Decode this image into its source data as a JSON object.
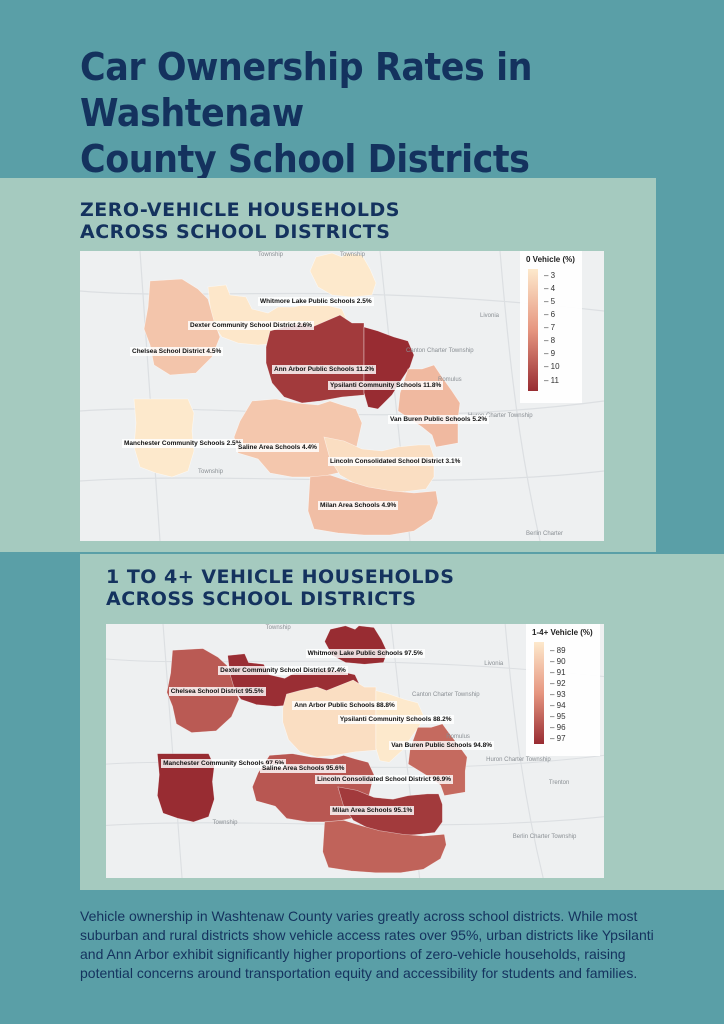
{
  "page": {
    "title_line1": "Car Ownership Rates in Washtenaw",
    "title_line2": "County School Districts",
    "description": "Vehicle ownership in Washtenaw County varies greatly across school districts. While most suburban and rural districts show vehicle access rates over 95%, urban districts like Ypsilanti and Ann Arbor exhibit significantly higher proportions of zero-vehicle households, raising potential concerns around transportation equity and accessibility for students and families."
  },
  "colors": {
    "background": "#5a9fa7",
    "panel": "#a5cabf",
    "heading": "#14325e"
  },
  "map_zero": {
    "heading_line1": "ZERO-VEHICLE HOUSEHOLDS",
    "heading_line2": "ACROSS SCHOOL DISTRICTS",
    "legend_title": "0 Vehicle (%)",
    "legend_ticks": [
      "3",
      "4",
      "5",
      "6",
      "7",
      "8",
      "9",
      "10",
      "11"
    ],
    "legend_min": 2.5,
    "legend_max": 11.8,
    "districts": [
      {
        "key": "whitmore",
        "name": "Whitmore Lake Public Schools",
        "value": 2.5,
        "label": "Whitmore Lake Public Schools 2.5%"
      },
      {
        "key": "dexter",
        "name": "Dexter Community School District",
        "value": 2.6,
        "label": "Dexter Community School District 2.6%"
      },
      {
        "key": "chelsea",
        "name": "Chelsea School District",
        "value": 4.5,
        "label": "Chelsea School District 4.5%"
      },
      {
        "key": "annarbor",
        "name": "Ann Arbor Public Schools",
        "value": 11.2,
        "label": "Ann Arbor Public Schools 11.2%"
      },
      {
        "key": "ypsilanti",
        "name": "Ypsilanti Community Schools",
        "value": 11.8,
        "label": "Ypsilanti Community Schools 11.8%"
      },
      {
        "key": "vanburen",
        "name": "Van Buren Public Schools",
        "value": 5.2,
        "label": "Van Buren Public Schools 5.2%"
      },
      {
        "key": "manchester",
        "name": "Manchester Community Schools",
        "value": 2.5,
        "label": "Manchester Community Schools 2.5%"
      },
      {
        "key": "saline",
        "name": "Saline Area Schools",
        "value": 4.4,
        "label": "Saline Area Schools 4.4%"
      },
      {
        "key": "lincoln",
        "name": "Lincoln Consolidated School District",
        "value": 3.1,
        "label": "Lincoln Consolidated School District 3.1%"
      },
      {
        "key": "milan",
        "name": "Milan Area Schools",
        "value": 4.9,
        "label": "Milan Area Schools 4.9%"
      }
    ],
    "places": [
      "Township",
      "Township",
      "Livonia",
      "Canton Charter Township",
      "Romulus",
      "Huron Charter Township",
      "Township",
      "Berlin Charter"
    ]
  },
  "map_vehicle": {
    "heading_line1": "1 TO 4+ VEHICLE HOUSEHOLDS",
    "heading_line2": "ACROSS SCHOOL DISTRICTS",
    "legend_title": "1-4+ Vehicle (%)",
    "legend_ticks": [
      "89",
      "90",
      "91",
      "92",
      "93",
      "94",
      "95",
      "96",
      "97"
    ],
    "legend_min": 88.2,
    "legend_max": 97.5,
    "districts": [
      {
        "key": "whitmore",
        "name": "Whitmore Lake Public Schools",
        "value": 97.5,
        "label": "Whitmore Lake Public Schools 97.5%"
      },
      {
        "key": "dexter",
        "name": "Dexter Community School District",
        "value": 97.4,
        "label": "Dexter Community School District 97.4%"
      },
      {
        "key": "chelsea",
        "name": "Chelsea School District",
        "value": 95.5,
        "label": "Chelsea School District 95.5%"
      },
      {
        "key": "annarbor",
        "name": "Ann Arbor Public Schools",
        "value": 88.8,
        "label": "Ann Arbor Public Schools 88.8%"
      },
      {
        "key": "ypsilanti",
        "name": "Ypsilanti Community Schools",
        "value": 88.2,
        "label": "Ypsilanti Community Schools 88.2%"
      },
      {
        "key": "vanburen",
        "name": "Van Buren Public Schools",
        "value": 94.8,
        "label": "Van Buren Public Schools 94.8%"
      },
      {
        "key": "manchester",
        "name": "Manchester Community Schools",
        "value": 97.5,
        "label": "Manchester Community Schools 97.5%"
      },
      {
        "key": "saline",
        "name": "Saline Area Schools",
        "value": 95.6,
        "label": "Saline Area Schools 95.6%"
      },
      {
        "key": "lincoln",
        "name": "Lincoln Consolidated School District",
        "value": 96.9,
        "label": "Lincoln Consolidated School District 96.9%"
      },
      {
        "key": "milan",
        "name": "Milan Area Schools",
        "value": 95.1,
        "label": "Milan Area Schools 95.1%"
      }
    ],
    "places": [
      "Township",
      "Livonia",
      "Canton Charter Township",
      "Romulus",
      "Huron Charter Township",
      "Trenton",
      "Township",
      "Berlin Charter Township"
    ]
  }
}
